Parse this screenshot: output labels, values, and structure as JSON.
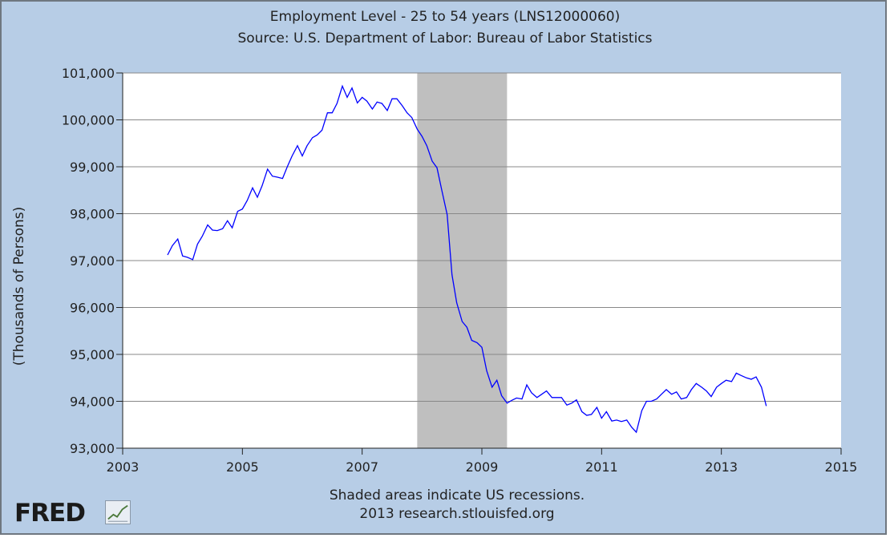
{
  "header": {
    "title": "Employment Level - 25 to 54 years (LNS12000060)",
    "source": "Source: U.S. Department of Labor: Bureau of Labor Statistics"
  },
  "footer": {
    "recession_note": "Shaded areas indicate US recessions.",
    "credit": "2013 research.stlouisfed.org"
  },
  "logo": {
    "text": "FRED",
    "icon": "line-chart-icon"
  },
  "colors": {
    "background": "#b7cde6",
    "plot": "#ffffff",
    "line": "#0000ff",
    "recession": "#bfbfbf",
    "grid": "#888888"
  },
  "chart_data": {
    "type": "line",
    "title": "Employment Level - 25 to 54 years (LNS12000060)",
    "subtitle": "Source: U.S. Department of Labor: Bureau of Labor Statistics",
    "ylabel": "(Thousands of Persons)",
    "xlabel": "",
    "xlim": [
      2003,
      2015
    ],
    "ylim": [
      93000,
      101000
    ],
    "xticks": [
      2003,
      2005,
      2007,
      2009,
      2011,
      2013,
      2015
    ],
    "xtick_labels": [
      "2003",
      "2005",
      "2007",
      "2009",
      "2011",
      "2013",
      "2015"
    ],
    "yticks": [
      93000,
      94000,
      95000,
      96000,
      97000,
      98000,
      99000,
      100000,
      101000
    ],
    "ytick_labels": [
      "93,000",
      "94,000",
      "95,000",
      "96,000",
      "97,000",
      "98,000",
      "99,000",
      "100,000",
      "101,000"
    ],
    "grid": true,
    "recessions": [
      {
        "start": 2007.92,
        "end": 2009.42
      }
    ],
    "series": [
      {
        "x": [
          2003.75,
          2003.83,
          2003.92,
          2004.0,
          2004.08,
          2004.17,
          2004.25,
          2004.33,
          2004.42,
          2004.5,
          2004.58,
          2004.67,
          2004.75,
          2004.83,
          2004.92,
          2005.0,
          2005.08,
          2005.17,
          2005.25,
          2005.33,
          2005.42,
          2005.5,
          2005.58,
          2005.67,
          2005.75,
          2005.83,
          2005.92,
          2006.0,
          2006.08,
          2006.17,
          2006.25,
          2006.33,
          2006.42,
          2006.5,
          2006.58,
          2006.67,
          2006.75,
          2006.83,
          2006.92,
          2007.0,
          2007.08,
          2007.17,
          2007.25,
          2007.33,
          2007.42,
          2007.5,
          2007.58,
          2007.67,
          2007.75,
          2007.83,
          2007.92,
          2008.0,
          2008.08,
          2008.17,
          2008.25,
          2008.33,
          2008.42,
          2008.5,
          2008.58,
          2008.67,
          2008.75,
          2008.83,
          2008.92,
          2009.0,
          2009.08,
          2009.17,
          2009.25,
          2009.33,
          2009.42,
          2009.5,
          2009.58,
          2009.67,
          2009.75,
          2009.83,
          2009.92,
          2010.0,
          2010.08,
          2010.17,
          2010.25,
          2010.33,
          2010.42,
          2010.5,
          2010.58,
          2010.67,
          2010.75,
          2010.83,
          2010.92,
          2011.0,
          2011.08,
          2011.17,
          2011.25,
          2011.33,
          2011.42,
          2011.5,
          2011.58,
          2011.67,
          2011.75,
          2011.83,
          2011.92,
          2012.0,
          2012.08,
          2012.17,
          2012.25,
          2012.33,
          2012.42,
          2012.5,
          2012.58,
          2012.67,
          2012.75,
          2012.83,
          2012.92,
          2013.0,
          2013.08,
          2013.17,
          2013.25,
          2013.33,
          2013.42,
          2013.5,
          2013.58,
          2013.67,
          2013.75
        ],
        "y": [
          97120,
          97320,
          97460,
          97100,
          97070,
          97020,
          97350,
          97520,
          97760,
          97650,
          97640,
          97680,
          97850,
          97700,
          98050,
          98100,
          98280,
          98550,
          98350,
          98600,
          98950,
          98800,
          98780,
          98750,
          99000,
          99230,
          99450,
          99230,
          99450,
          99620,
          99680,
          99780,
          100150,
          100150,
          100350,
          100720,
          100480,
          100680,
          100360,
          100480,
          100400,
          100230,
          100380,
          100350,
          100200,
          100450,
          100450,
          100300,
          100150,
          100050,
          99800,
          99650,
          99450,
          99120,
          98980,
          98500,
          97980,
          96700,
          96100,
          95700,
          95580,
          95300,
          95250,
          95150,
          94650,
          94300,
          94450,
          94120,
          93960,
          94020,
          94070,
          94050,
          94350,
          94180,
          94080,
          94150,
          94220,
          94080,
          94080,
          94080,
          93920,
          93960,
          94030,
          93780,
          93700,
          93720,
          93870,
          93640,
          93780,
          93580,
          93600,
          93570,
          93600,
          93450,
          93340,
          93800,
          94000,
          94000,
          94050,
          94150,
          94250,
          94150,
          94200,
          94050,
          94080,
          94250,
          94380,
          94300,
          94220,
          94100,
          94300,
          94380,
          94450,
          94420,
          94600,
          94550,
          94500,
          94470,
          94520,
          94300,
          93900
        ]
      }
    ]
  }
}
